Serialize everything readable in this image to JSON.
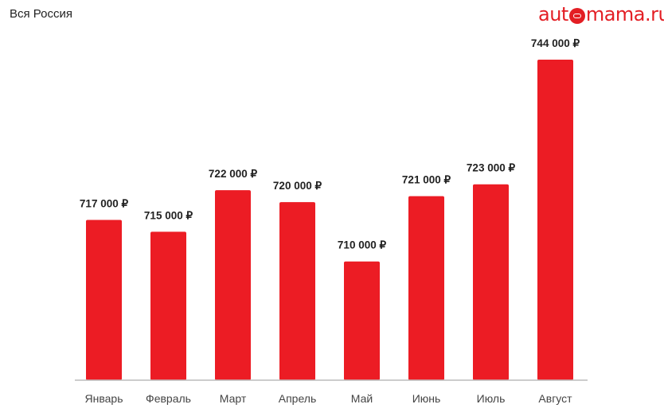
{
  "header": {
    "title": "Вся Россия",
    "logo_text": "automama.ru"
  },
  "chart_data": {
    "type": "bar",
    "title": "",
    "xlabel": "",
    "ylabel": "",
    "categories": [
      "Январь",
      "Февраль",
      "Март",
      "Апрель",
      "Май",
      "Июнь",
      "Июль",
      "Август"
    ],
    "values": [
      717000,
      715000,
      722000,
      720000,
      710000,
      721000,
      723000,
      744000
    ],
    "labels": [
      "717 000 ₽",
      "715 000 ₽",
      "722 000 ₽",
      "720 000 ₽",
      "710 000 ₽",
      "721 000 ₽",
      "723 000 ₽",
      "744 000 ₽"
    ],
    "ylim": [
      690000,
      745000
    ],
    "grid": false,
    "bar_color": "#ec1c24"
  }
}
